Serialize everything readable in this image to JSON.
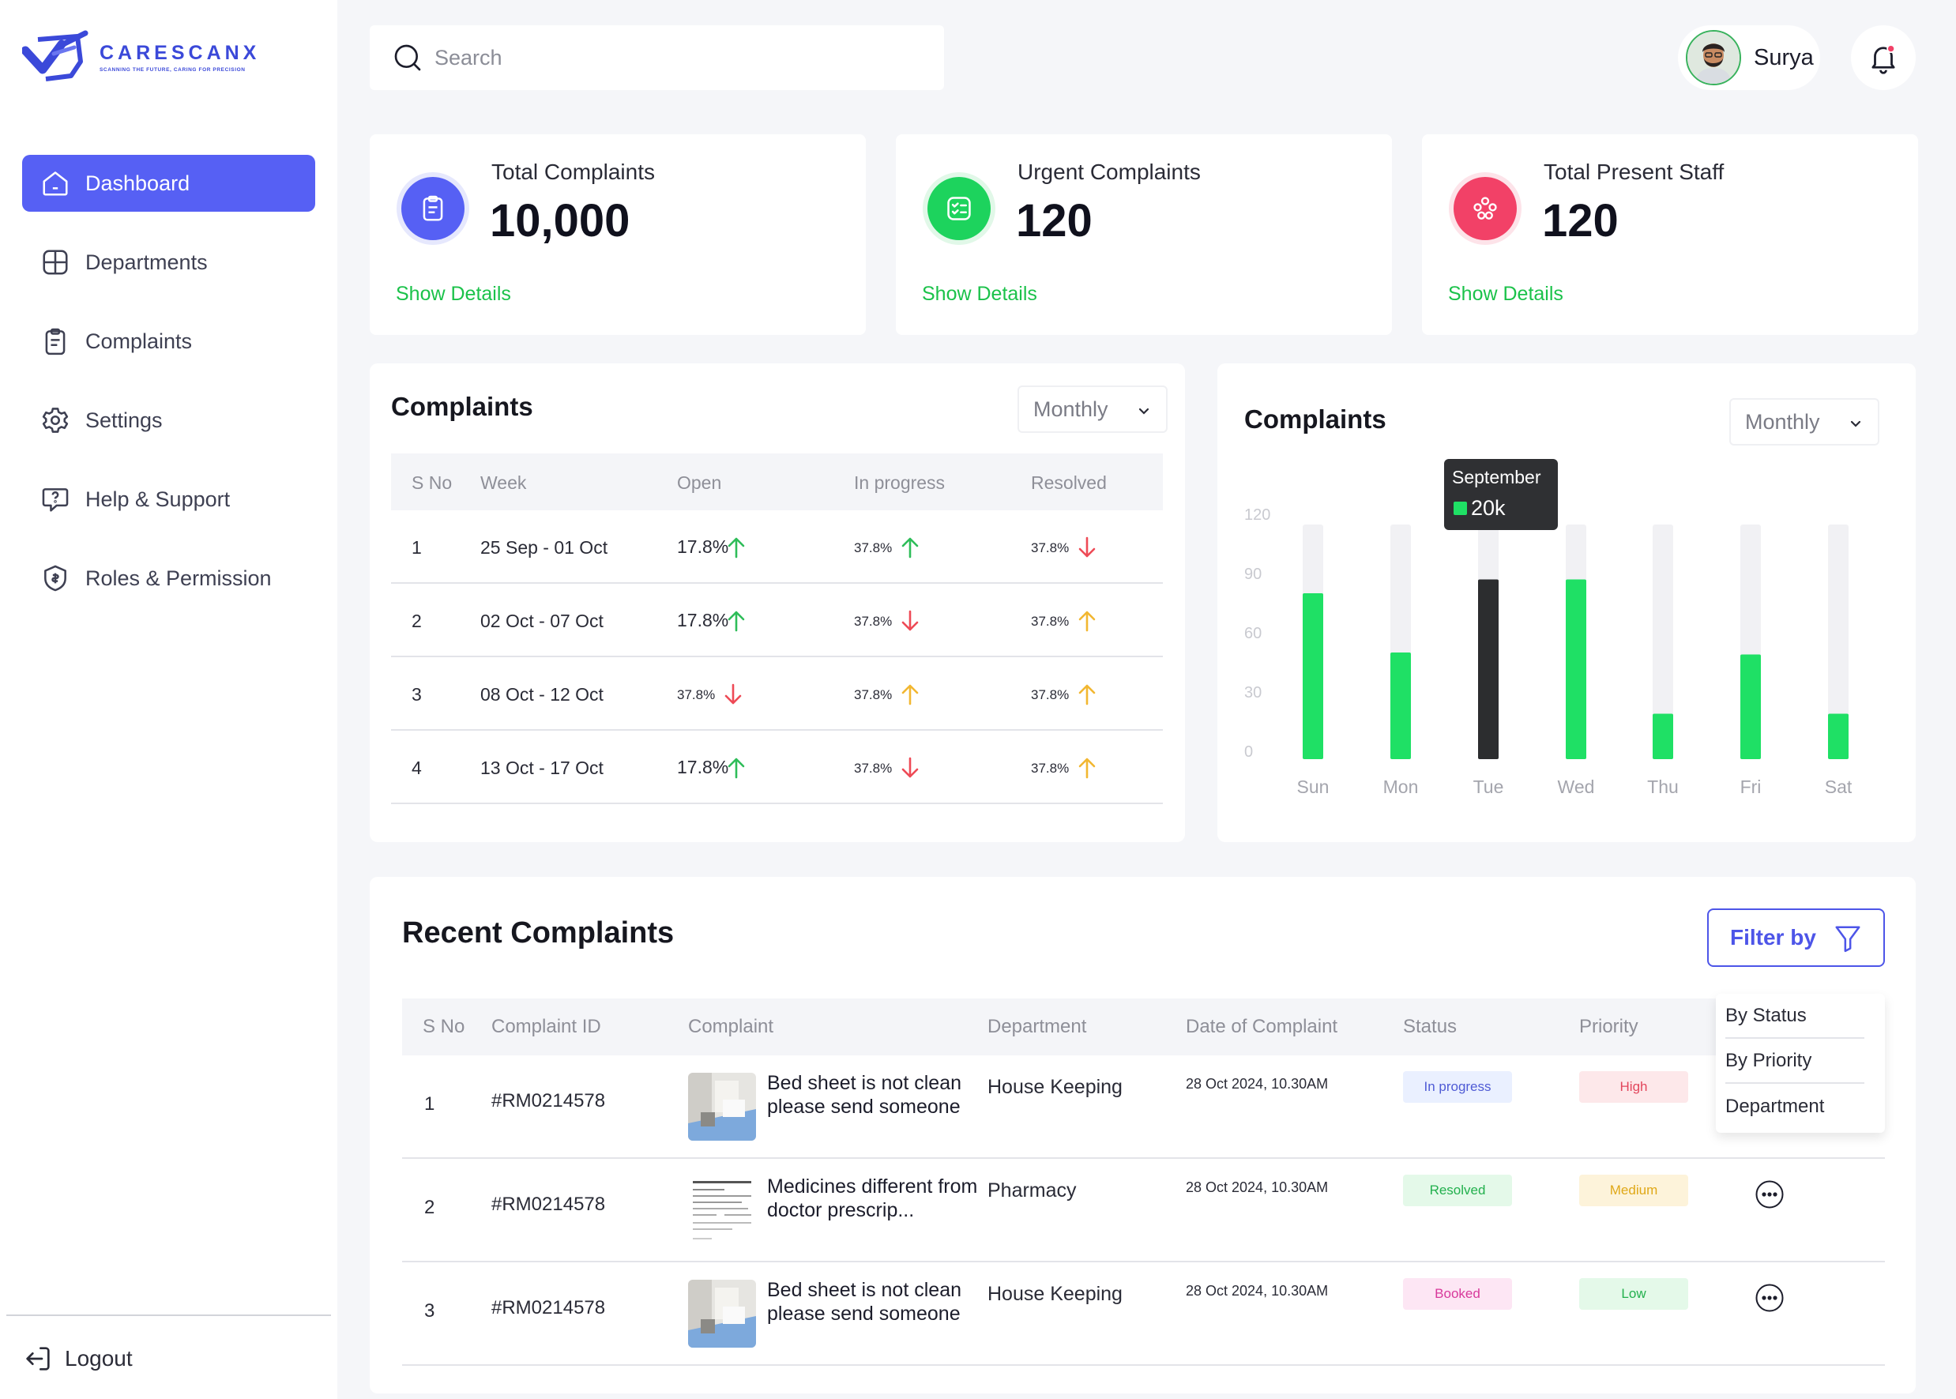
{
  "brand": {
    "name": "CARESCANX",
    "tagline": "SCANNING THE FUTURE, CARING FOR PRECISION",
    "accent": "#5660f4"
  },
  "sidebar": {
    "items": [
      {
        "label": "Dashboard",
        "icon": "home-icon",
        "active": true
      },
      {
        "label": "Departments",
        "icon": "grid-icon",
        "active": false
      },
      {
        "label": "Complaints",
        "icon": "clipboard-icon",
        "active": false
      },
      {
        "label": "Settings",
        "icon": "gear-icon",
        "active": false
      },
      {
        "label": "Help & Support",
        "icon": "help-chat-icon",
        "active": false
      },
      {
        "label": "Roles & Permission",
        "icon": "badge-icon",
        "active": false
      }
    ],
    "logout": "Logout"
  },
  "header": {
    "search_placeholder": "Search",
    "user_name": "Surya"
  },
  "stats": [
    {
      "title": "Total Complaints",
      "value": "10,000",
      "link": "Show Details",
      "icon": "clipboard-icon",
      "color": "#5660f4"
    },
    {
      "title": "Urgent Complaints",
      "value": "120",
      "link": "Show Details",
      "icon": "checklist-icon",
      "color": "#1dd35d"
    },
    {
      "title": "Total Present Staff",
      "value": "120",
      "link": "Show Details",
      "icon": "staff-icon",
      "color": "#f24167"
    }
  ],
  "weekly": {
    "title": "Complaints",
    "period": "Monthly",
    "columns": [
      "S No",
      "Week",
      "Open",
      "In progress",
      "Resolved"
    ],
    "rows": [
      {
        "sno": "1",
        "week": "25 Sep - 01 Oct",
        "open": {
          "v": "17.8%",
          "dir": "up-green"
        },
        "progress": {
          "v": "37.8%",
          "dir": "up-green"
        },
        "resolved": {
          "v": "37.8%",
          "dir": "down-red"
        }
      },
      {
        "sno": "2",
        "week": "02 Oct - 07 Oct",
        "open": {
          "v": "17.8%",
          "dir": "up-green"
        },
        "progress": {
          "v": "37.8%",
          "dir": "down-red"
        },
        "resolved": {
          "v": "37.8%",
          "dir": "up-yellow"
        }
      },
      {
        "sno": "3",
        "week": "08 Oct - 12 Oct",
        "open": {
          "v": "37.8%",
          "dir": "down-red"
        },
        "progress": {
          "v": "37.8%",
          "dir": "up-yellow"
        },
        "resolved": {
          "v": "37.8%",
          "dir": "up-yellow"
        }
      },
      {
        "sno": "4",
        "week": "13 Oct - 17 Oct",
        "open": {
          "v": "17.8%",
          "dir": "up-green"
        },
        "progress": {
          "v": "37.8%",
          "dir": "down-red"
        },
        "resolved": {
          "v": "37.8%",
          "dir": "up-yellow"
        }
      }
    ]
  },
  "chart_panel": {
    "title": "Complaints",
    "period": "Monthly",
    "tooltip_month": "September",
    "tooltip_value": "20k"
  },
  "chart_data": {
    "type": "bar",
    "categories": [
      "Sun",
      "Mon",
      "Tue",
      "Wed",
      "Thu",
      "Fri",
      "Sat"
    ],
    "values": [
      80,
      50,
      87,
      87,
      19,
      49,
      19
    ],
    "highlight_index": 2,
    "ylim": [
      0,
      120
    ],
    "yticks": [
      "0",
      "30",
      "60",
      "90",
      "120"
    ],
    "bar_color": "#1fe065",
    "highlight_color": "#2c2d2f",
    "track_color": "#f1f1f4"
  },
  "recent": {
    "title": "Recent Complaints",
    "filter_label": "Filter by",
    "filter_options": [
      "By Status",
      "By Priority",
      "Department"
    ],
    "columns": [
      "S No",
      "Complaint ID",
      "Complaint",
      "Department",
      "Date of Complaint",
      "Status",
      "Priority"
    ],
    "rows": [
      {
        "sno": "1",
        "id": "#RM0214578",
        "complaint": "Bed sheet is not clean please send someone",
        "thumb": "room-photo",
        "department": "House Keeping",
        "date": "28 Oct 2024, 10.30AM",
        "status": "In progress",
        "status_bg": "#eaf0ff",
        "status_fg": "#4f5bd5",
        "priority": "High",
        "priority_bg": "#fde8ea",
        "priority_fg": "#e2465c"
      },
      {
        "sno": "2",
        "id": "#RM0214578",
        "complaint": "Medicines different from doctor prescrip...",
        "thumb": "prescription-photo",
        "department": "Pharmacy",
        "date": "28 Oct 2024, 10.30AM",
        "status": "Resolved",
        "status_bg": "#e4f9e9",
        "status_fg": "#22b04d",
        "priority": "Medium",
        "priority_bg": "#fdf3da",
        "priority_fg": "#e0a817"
      },
      {
        "sno": "3",
        "id": "#RM0214578",
        "complaint": "Bed sheet is not clean please send someone",
        "thumb": "room-photo",
        "department": "House Keeping",
        "date": "28 Oct 2024, 10.30AM",
        "status": "Booked",
        "status_bg": "#fde6f4",
        "status_fg": "#d8399b",
        "priority": "Low",
        "priority_bg": "#e4f9e9",
        "priority_fg": "#22b04d"
      }
    ]
  }
}
